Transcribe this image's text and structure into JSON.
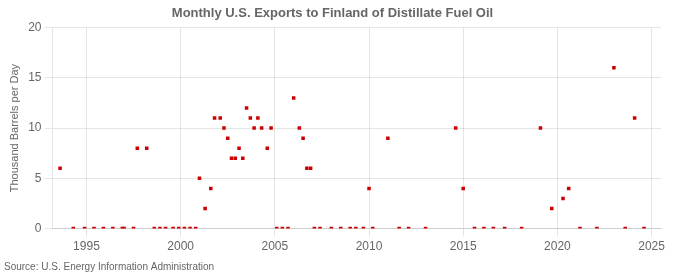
{
  "chart_data": {
    "type": "scatter",
    "title": "Monthly U.S. Exports to Finland of Distillate Fuel Oil",
    "ylabel": "Thousand Barrels per Day",
    "source": "Source: U.S. Energy Information Administration",
    "color": "#cc0000",
    "marker": "square",
    "grid": true,
    "xlim": [
      1993.2,
      2025.5
    ],
    "xticks": [
      1995,
      2000,
      2005,
      2010,
      2015,
      2020,
      2025
    ],
    "ylim": [
      0,
      20
    ],
    "yticks": [
      0,
      5,
      10,
      15,
      20
    ],
    "x": [
      1993.6,
      1994.3,
      1994.9,
      1995.4,
      1995.9,
      1996.4,
      1996.9,
      1997.0,
      1997.5,
      1997.7,
      1998.2,
      1998.6,
      1998.9,
      1999.2,
      1999.6,
      1999.9,
      2000.2,
      2000.5,
      2000.8,
      2001.0,
      2001.3,
      2001.6,
      2001.8,
      2002.1,
      2002.3,
      2002.5,
      2002.7,
      2002.9,
      2003.1,
      2003.3,
      2003.5,
      2003.7,
      2003.9,
      2004.1,
      2004.3,
      2004.6,
      2004.8,
      2005.1,
      2005.4,
      2005.7,
      2006.0,
      2006.3,
      2006.5,
      2006.7,
      2006.9,
      2007.1,
      2007.4,
      2008.0,
      2008.5,
      2009.0,
      2009.3,
      2009.7,
      2010.0,
      2010.2,
      2011.0,
      2011.6,
      2012.1,
      2013.0,
      2014.6,
      2015.0,
      2015.6,
      2016.1,
      2016.6,
      2017.2,
      2018.1,
      2019.1,
      2019.7,
      2020.3,
      2020.6,
      2021.2,
      2022.1,
      2023.0,
      2023.6,
      2024.1,
      2024.6
    ],
    "values": [
      6,
      0,
      0,
      0,
      0,
      0,
      0,
      0,
      0,
      8,
      8,
      0,
      0,
      0,
      0,
      0,
      0,
      0,
      0,
      5,
      2,
      4,
      11,
      11,
      10,
      9,
      7,
      7,
      8,
      7,
      12,
      11,
      10,
      11,
      10,
      8,
      10,
      0,
      0,
      0,
      13,
      10,
      9,
      6,
      6,
      0,
      0,
      0,
      0,
      0,
      0,
      0,
      4,
      0,
      9,
      0,
      0,
      0,
      10,
      4,
      0,
      0,
      0,
      0,
      0,
      10,
      2,
      3,
      4,
      0,
      0,
      16,
      0,
      11,
      0
    ]
  }
}
